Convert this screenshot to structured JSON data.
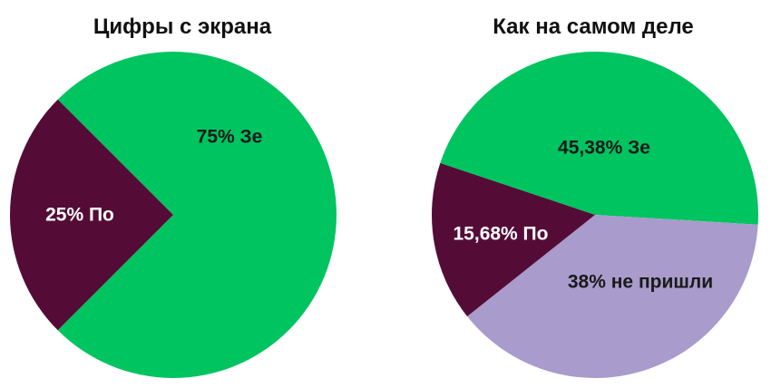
{
  "chart_data": [
    {
      "type": "pie",
      "title": "Цифры с экрана",
      "slices": [
        {
          "label": "75% Зе",
          "value": 75,
          "color": "#00C460",
          "label_color": "#1a1a1a"
        },
        {
          "label": "25% По",
          "value": 25,
          "color": "#540C37",
          "label_color": "#ffffff"
        }
      ]
    },
    {
      "type": "pie",
      "title": "Как на самом деле",
      "slices": [
        {
          "label": "45,38% Зе",
          "value": 45.38,
          "color": "#00C460",
          "label_color": "#1a1a1a"
        },
        {
          "label": "38% не пришли",
          "value": 38,
          "color": "#A99BCC",
          "label_color": "#1a1a1a"
        },
        {
          "label": "15,68% По",
          "value": 15.68,
          "color": "#540C37",
          "label_color": "#ffffff"
        }
      ]
    }
  ]
}
